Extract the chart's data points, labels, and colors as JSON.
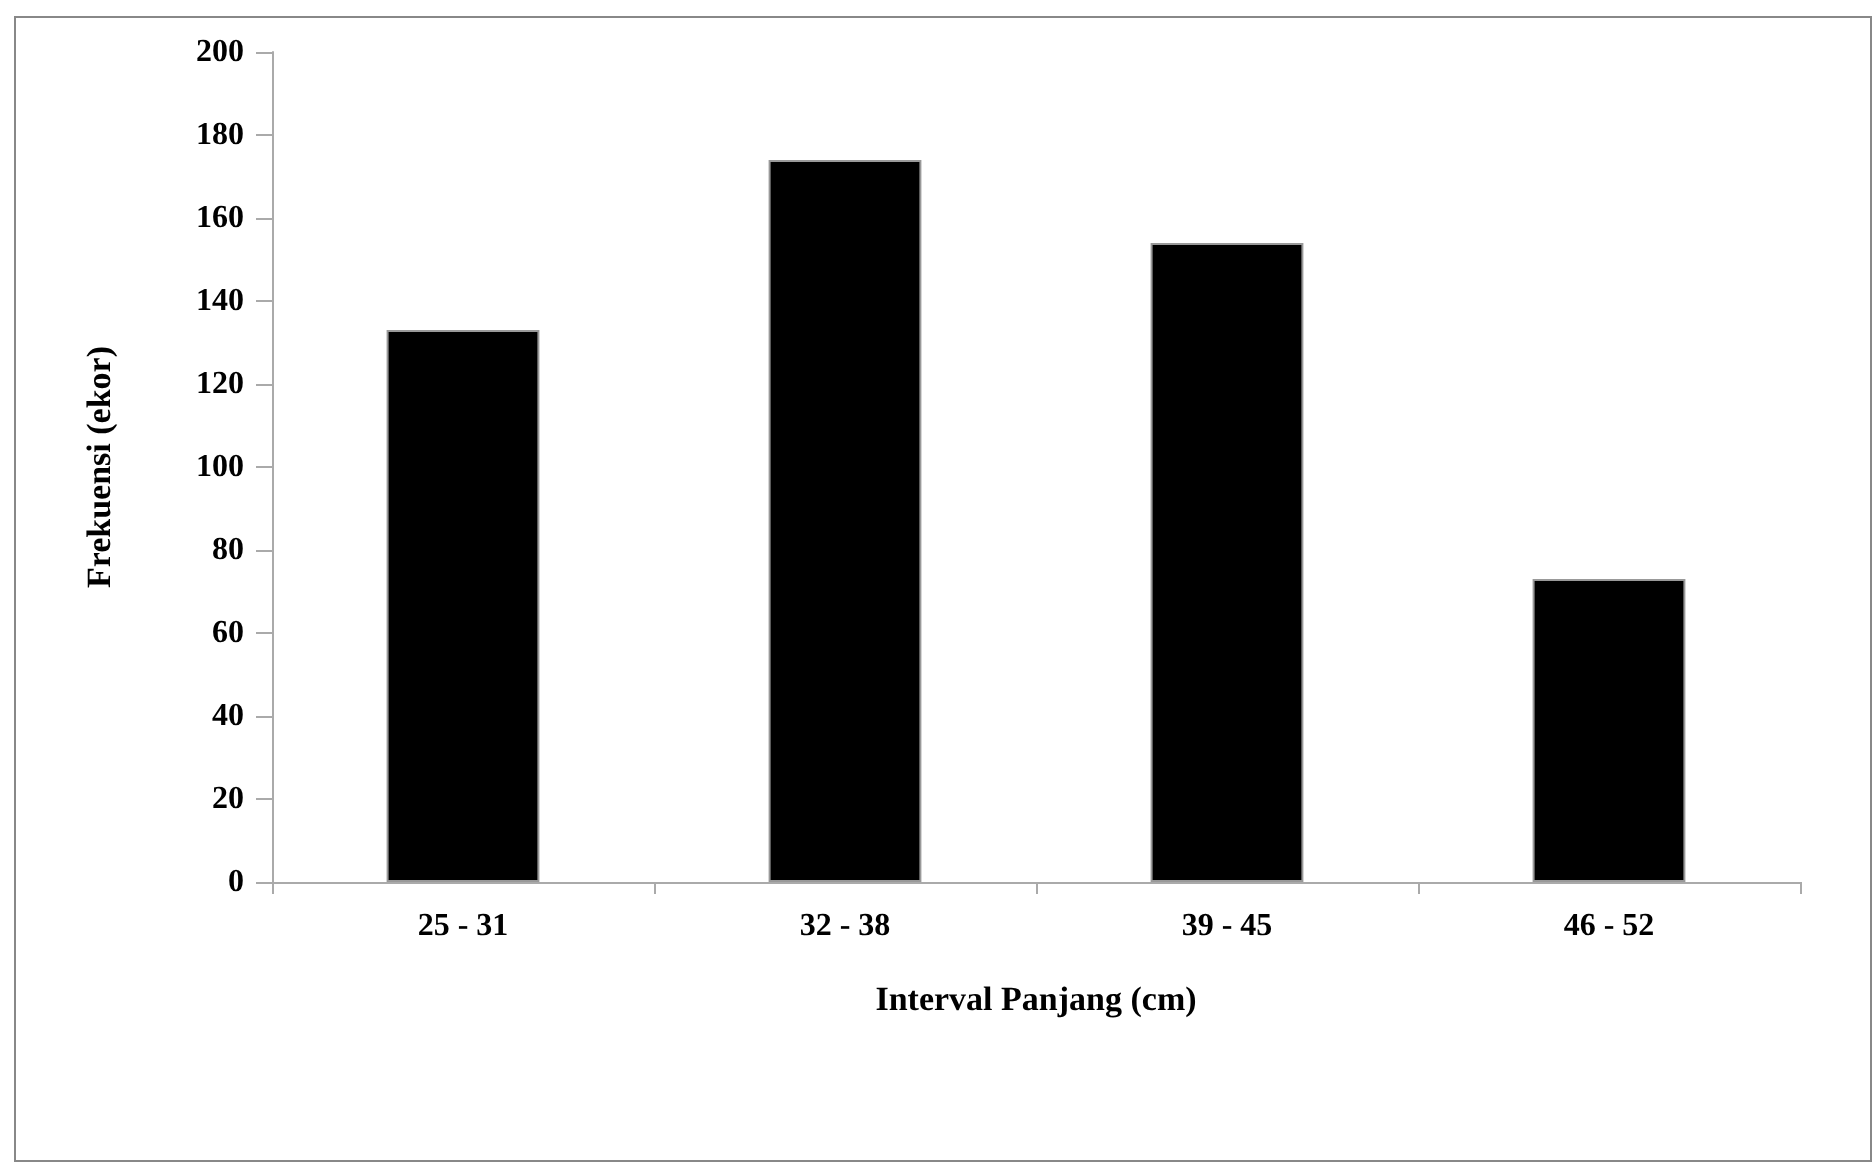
{
  "chart_data": {
    "type": "bar",
    "xlabel": "Interval Panjang (cm)",
    "ylabel": "Frekuensi (ekor)",
    "categories": [
      "25 - 31",
      "32 - 38",
      "39 - 45",
      "46 - 52"
    ],
    "values": [
      133,
      174,
      154,
      73
    ],
    "color": "#000000",
    "ylim": [
      0,
      200
    ],
    "yticks": [
      0,
      20,
      40,
      60,
      80,
      100,
      120,
      140,
      160,
      180,
      200
    ],
    "grid": false
  }
}
